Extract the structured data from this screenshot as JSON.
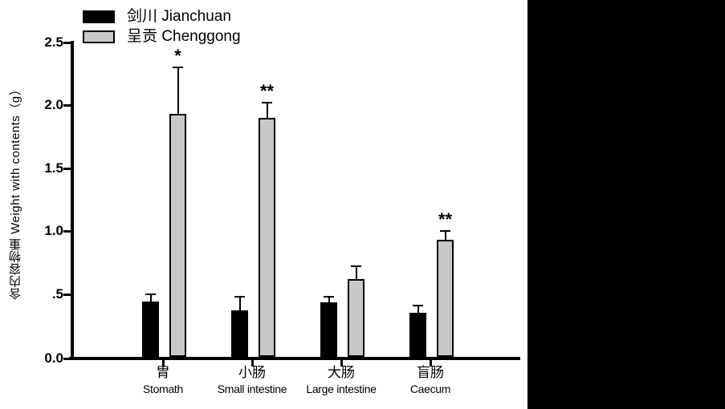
{
  "figure": {
    "bg_color": "#ffffff",
    "right_panel_color": "#000000"
  },
  "legend": {
    "items": [
      {
        "label": "剑川 Jianchuan",
        "color": "#000000"
      },
      {
        "label": "呈贡 Chenggong",
        "color": "#c8c8c8"
      }
    ]
  },
  "chart_data": {
    "type": "bar",
    "title": "",
    "xlabel": "",
    "ylabel": "含内容物重 Weight with contents（g）",
    "ylim": [
      0,
      2.5
    ],
    "grid": false,
    "legend_position": "top-left",
    "error_bars": "upper",
    "yticks": [
      {
        "value": 0.0,
        "label": "0.0"
      },
      {
        "value": 0.5,
        "label": ".5"
      },
      {
        "value": 1.0,
        "label": "1.0"
      },
      {
        "value": 1.5,
        "label": "1.5"
      },
      {
        "value": 2.0,
        "label": "2.0"
      },
      {
        "value": 2.5,
        "label": "2.5"
      }
    ],
    "categories": [
      {
        "label_zh": "胃",
        "label_en": "Stomath"
      },
      {
        "label_zh": "小肠",
        "label_en": "Small intestine"
      },
      {
        "label_zh": "大肠",
        "label_en": "Large intestine"
      },
      {
        "label_zh": "盲肠",
        "label_en": "Caecum"
      }
    ],
    "series": [
      {
        "name": "剑川 Jianchuan",
        "color": "#000000",
        "border_color": "#000000",
        "values": [
          0.44,
          0.37,
          0.43,
          0.35
        ],
        "errors": [
          0.06,
          0.11,
          0.05,
          0.06
        ],
        "significance": [
          "",
          "",
          "",
          ""
        ]
      },
      {
        "name": "呈贡 Chenggong",
        "color": "#c8c8c8",
        "border_color": "#000000",
        "values": [
          1.93,
          1.9,
          0.62,
          0.93
        ],
        "errors": [
          0.37,
          0.12,
          0.1,
          0.07
        ],
        "significance": [
          "*",
          "**",
          "",
          "**"
        ]
      }
    ]
  }
}
